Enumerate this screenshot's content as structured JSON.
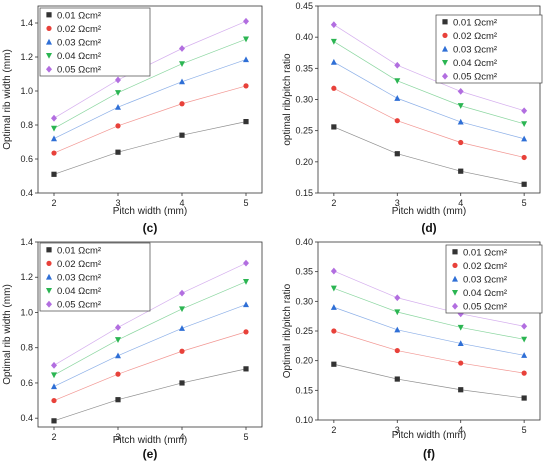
{
  "chart_data": [
    {
      "panel_label": "(c)",
      "type": "line",
      "xlabel": "Pitch width (mm)",
      "ylabel": "Optimal rib width (mm)",
      "x": [
        2,
        3,
        4,
        5
      ],
      "xlim": [
        1.75,
        5.25
      ],
      "xticks": [
        2,
        3,
        4,
        5
      ],
      "ylim": [
        0.4,
        1.5
      ],
      "yticks": [
        0.4,
        0.6,
        0.8,
        1.0,
        1.2,
        1.4
      ],
      "ytick_labels": [
        "0.4",
        "0.6",
        "0.8",
        "1.0",
        "1.2",
        "1.4"
      ],
      "legend": "top-left",
      "grid": false,
      "series": [
        {
          "name": "0.01 Ωcm²",
          "values": [
            0.51,
            0.64,
            0.74,
            0.82
          ]
        },
        {
          "name": "0.02 Ωcm²",
          "values": [
            0.635,
            0.795,
            0.925,
            1.03
          ]
        },
        {
          "name": "0.03 Ωcm²",
          "values": [
            0.72,
            0.905,
            1.055,
            1.185
          ]
        },
        {
          "name": "0.04 Ωcm²",
          "values": [
            0.78,
            0.99,
            1.16,
            1.305
          ]
        },
        {
          "name": "0.05 Ωcm²",
          "values": [
            0.84,
            1.065,
            1.25,
            1.41
          ]
        }
      ]
    },
    {
      "panel_label": "(d)",
      "type": "line",
      "xlabel": "Pitch width (mm)",
      "ylabel": "optimal rib/pitch ratio",
      "x": [
        2,
        3,
        4,
        5
      ],
      "xlim": [
        1.75,
        5.25
      ],
      "xticks": [
        2,
        3,
        4,
        5
      ],
      "ylim": [
        0.15,
        0.45
      ],
      "yticks": [
        0.15,
        0.2,
        0.25,
        0.3,
        0.35,
        0.4,
        0.45
      ],
      "ytick_labels": [
        "0.15",
        "0.20",
        "0.25",
        "0.30",
        "0.35",
        "0.40",
        "0.45"
      ],
      "legend": "top-right",
      "grid": false,
      "series": [
        {
          "name": "0.01 Ωcm²",
          "values": [
            0.256,
            0.213,
            0.185,
            0.164
          ]
        },
        {
          "name": "0.02 Ωcm²",
          "values": [
            0.318,
            0.266,
            0.231,
            0.207
          ]
        },
        {
          "name": "0.03 Ωcm²",
          "values": [
            0.36,
            0.302,
            0.264,
            0.237
          ]
        },
        {
          "name": "0.04 Ωcm²",
          "values": [
            0.393,
            0.33,
            0.29,
            0.261
          ]
        },
        {
          "name": "0.05 Ωcm²",
          "values": [
            0.42,
            0.355,
            0.313,
            0.282
          ]
        }
      ]
    },
    {
      "panel_label": "(e)",
      "type": "line",
      "xlabel": "Pitch width (mm)",
      "ylabel": "Optimal rib width (mm)",
      "x": [
        2,
        3,
        4,
        5
      ],
      "xlim": [
        1.75,
        5.25
      ],
      "xticks": [
        2,
        3,
        4,
        5
      ],
      "ylim": [
        0.35,
        1.4
      ],
      "yticks": [
        0.4,
        0.6,
        0.8,
        1.0,
        1.2,
        1.4
      ],
      "ytick_labels": [
        "0.4",
        "0.6",
        "0.8",
        "1.0",
        "1.2",
        "1.4"
      ],
      "legend": "top-left",
      "grid": false,
      "series": [
        {
          "name": "0.01 Ωcm²",
          "values": [
            0.385,
            0.505,
            0.6,
            0.68
          ]
        },
        {
          "name": "0.02 Ωcm²",
          "values": [
            0.5,
            0.65,
            0.78,
            0.89
          ]
        },
        {
          "name": "0.03 Ωcm²",
          "values": [
            0.58,
            0.755,
            0.91,
            1.045
          ]
        },
        {
          "name": "0.04 Ωcm²",
          "values": [
            0.645,
            0.845,
            1.02,
            1.175
          ]
        },
        {
          "name": "0.05 Ωcm²",
          "values": [
            0.7,
            0.915,
            1.11,
            1.28
          ]
        }
      ]
    },
    {
      "panel_label": "(f)",
      "type": "line",
      "xlabel": "Pitch width (mm)",
      "ylabel": "Optimal rib/pitch ratio",
      "x": [
        2,
        3,
        4,
        5
      ],
      "xlim": [
        1.75,
        5.25
      ],
      "xticks": [
        2,
        3,
        4,
        5
      ],
      "ylim": [
        0.1,
        0.4
      ],
      "yticks": [
        0.1,
        0.15,
        0.2,
        0.25,
        0.3,
        0.35,
        0.4
      ],
      "ytick_labels": [
        "0.10",
        "0.15",
        "0.20",
        "0.25",
        "0.30",
        "0.35",
        "0.40"
      ],
      "legend": "top-right",
      "grid": false,
      "series": [
        {
          "name": "0.01 Ωcm²",
          "values": [
            0.194,
            0.169,
            0.151,
            0.137
          ]
        },
        {
          "name": "0.02 Ωcm²",
          "values": [
            0.25,
            0.217,
            0.196,
            0.179
          ]
        },
        {
          "name": "0.03 Ωcm²",
          "values": [
            0.29,
            0.252,
            0.229,
            0.209
          ]
        },
        {
          "name": "0.04 Ωcm²",
          "values": [
            0.322,
            0.282,
            0.256,
            0.236
          ]
        },
        {
          "name": "0.05 Ωcm²",
          "values": [
            0.351,
            0.306,
            0.279,
            0.258
          ]
        }
      ]
    }
  ],
  "series_style": [
    {
      "color": "#333333",
      "marker": "square"
    },
    {
      "color": "#e8413a",
      "marker": "circle"
    },
    {
      "color": "#2f6fd6",
      "marker": "triangle-up"
    },
    {
      "color": "#2bb552",
      "marker": "triangle-down"
    },
    {
      "color": "#b26ee0",
      "marker": "diamond"
    }
  ]
}
